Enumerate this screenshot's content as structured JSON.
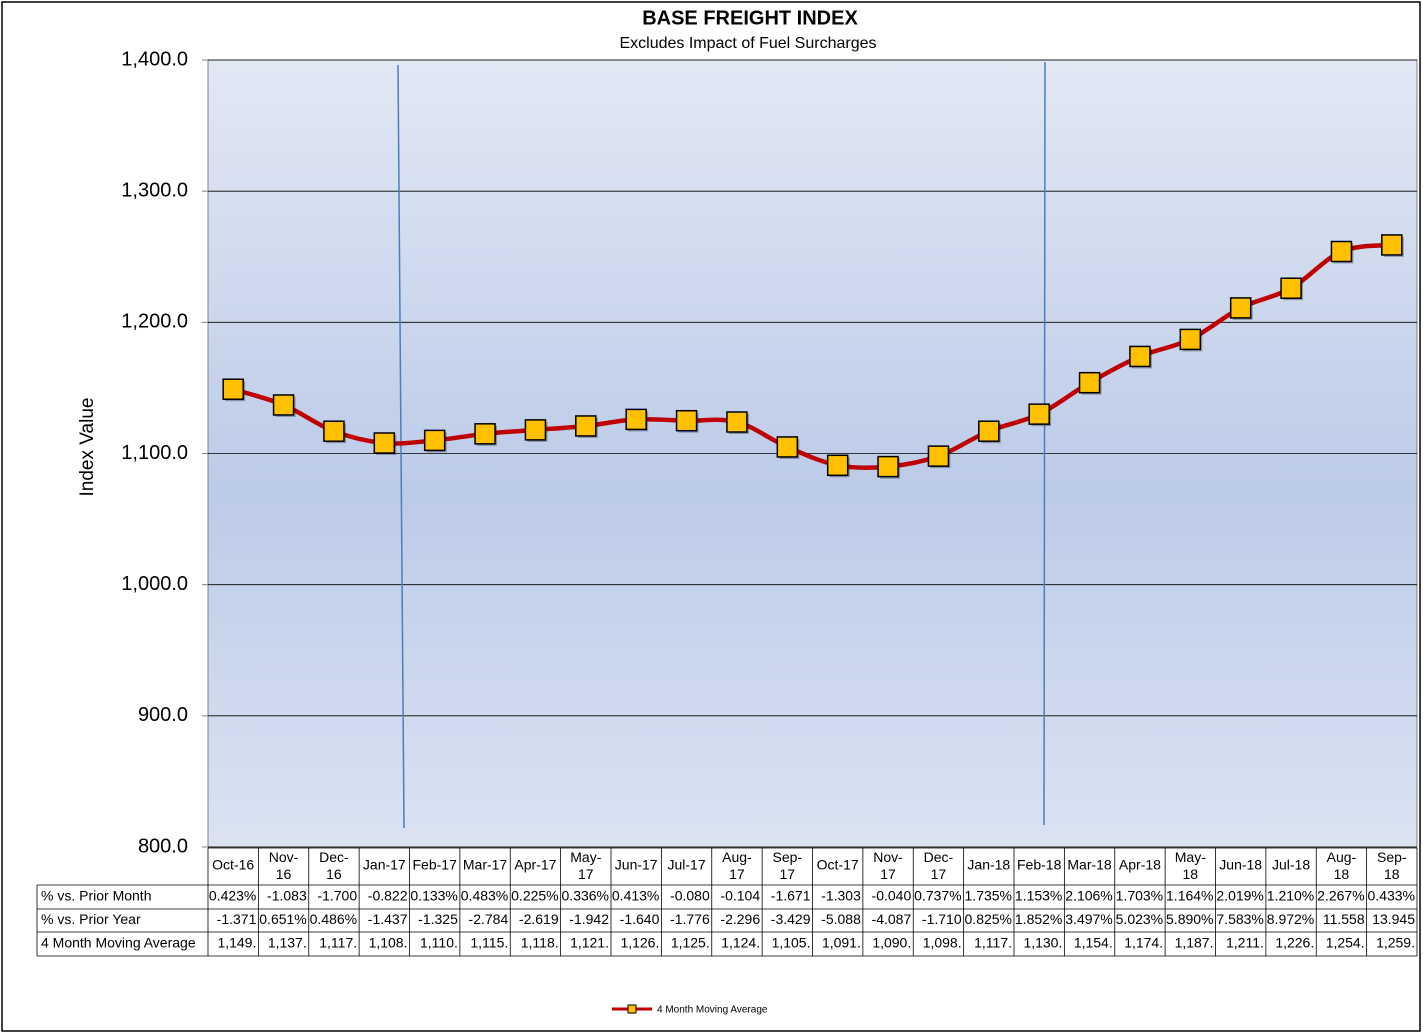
{
  "chart_data": {
    "type": "line",
    "title": "BASE FREIGHT INDEX",
    "subtitle": "Excludes Impact of Fuel Surcharges",
    "y_label": "Index Value",
    "categories": [
      "Oct-16",
      "Nov-16",
      "Dec-16",
      "Jan-17",
      "Feb-17",
      "Mar-17",
      "Apr-17",
      "May-17",
      "Jun-17",
      "Jul-17",
      "Aug-17",
      "Sep-17",
      "Oct-17",
      "Nov-17",
      "Dec-17",
      "Jan-18",
      "Feb-18",
      "Mar-18",
      "Apr-18",
      "May-18",
      "Jun-18",
      "Jul-18",
      "Aug-18",
      "Sep-18"
    ],
    "series": [
      {
        "name": "4 Month Moving Average",
        "color": "#c00000",
        "marker_color": "#ffc000",
        "values": [
          1149,
          1137,
          1117,
          1108,
          1110,
          1115,
          1118,
          1121,
          1126,
          1125,
          1124,
          1105,
          1091,
          1090,
          1098,
          1117,
          1130,
          1154,
          1174,
          1187,
          1211,
          1226,
          1254,
          1259
        ],
        "value_labels": [
          "1,149.",
          "1,137.",
          "1,117.",
          "1,108.",
          "1,110.",
          "1,115.",
          "1,118.",
          "1,121.",
          "1,126.",
          "1,125.",
          "1,124.",
          "1,105.",
          "1,091.",
          "1,090.",
          "1,098.",
          "1,117.",
          "1,130.",
          "1,154.",
          "1,174.",
          "1,187.",
          "1,211.",
          "1,226.",
          "1,254.",
          "1,259."
        ]
      }
    ],
    "table_rows": [
      {
        "name": "% vs. Prior Month",
        "values": [
          0.423,
          -1.083,
          -1.7,
          -0.822,
          0.133,
          0.483,
          0.225,
          0.336,
          0.413,
          -0.08,
          -0.104,
          -1.671,
          -1.303,
          -0.04,
          0.737,
          1.735,
          1.153,
          2.106,
          1.703,
          1.164,
          2.019,
          1.21,
          2.267,
          0.433
        ],
        "value_labels": [
          "0.423%",
          "-1.083",
          "-1.700",
          "-0.822",
          "0.133%",
          "0.483%",
          "0.225%",
          "0.336%",
          "0.413%",
          "-0.080",
          "-0.104",
          "-1.671",
          "-1.303",
          "-0.040",
          "0.737%",
          "1.735%",
          "1.153%",
          "2.106%",
          "1.703%",
          "1.164%",
          "2.019%",
          "1.210%",
          "2.267%",
          "0.433%"
        ]
      },
      {
        "name": "% vs. Prior Year",
        "values": [
          -1.371,
          0.651,
          0.486,
          -1.437,
          -1.325,
          -2.784,
          -2.619,
          -1.942,
          -1.64,
          -1.776,
          -2.296,
          -3.429,
          -5.088,
          -4.087,
          -1.71,
          0.825,
          1.852,
          3.497,
          5.023,
          5.89,
          7.583,
          8.972,
          11.558,
          13.945
        ],
        "value_labels": [
          "-1.371",
          "0.651%",
          "0.486%",
          "-1.437",
          "-1.325",
          "-2.784",
          "-2.619",
          "-1.942",
          "-1.640",
          "-1.776",
          "-2.296",
          "-3.429",
          "-5.088",
          "-4.087",
          "-1.710",
          "0.825%",
          "1.852%",
          "3.497%",
          "5.023%",
          "5.890%",
          "7.583%",
          "8.972%",
          "11.558",
          "13.945"
        ]
      }
    ],
    "ylim": [
      800,
      1400
    ],
    "yticks": [
      {
        "value": 800,
        "label": "800.0"
      },
      {
        "value": 900,
        "label": "900.0"
      },
      {
        "value": 1000,
        "label": "1,000.0"
      },
      {
        "value": 1100,
        "label": "1,100.0"
      },
      {
        "value": 1200,
        "label": "1,200.0"
      },
      {
        "value": 1300,
        "label": "1,300.0"
      },
      {
        "value": 1400,
        "label": "1,400.0"
      }
    ],
    "grid": true
  }
}
